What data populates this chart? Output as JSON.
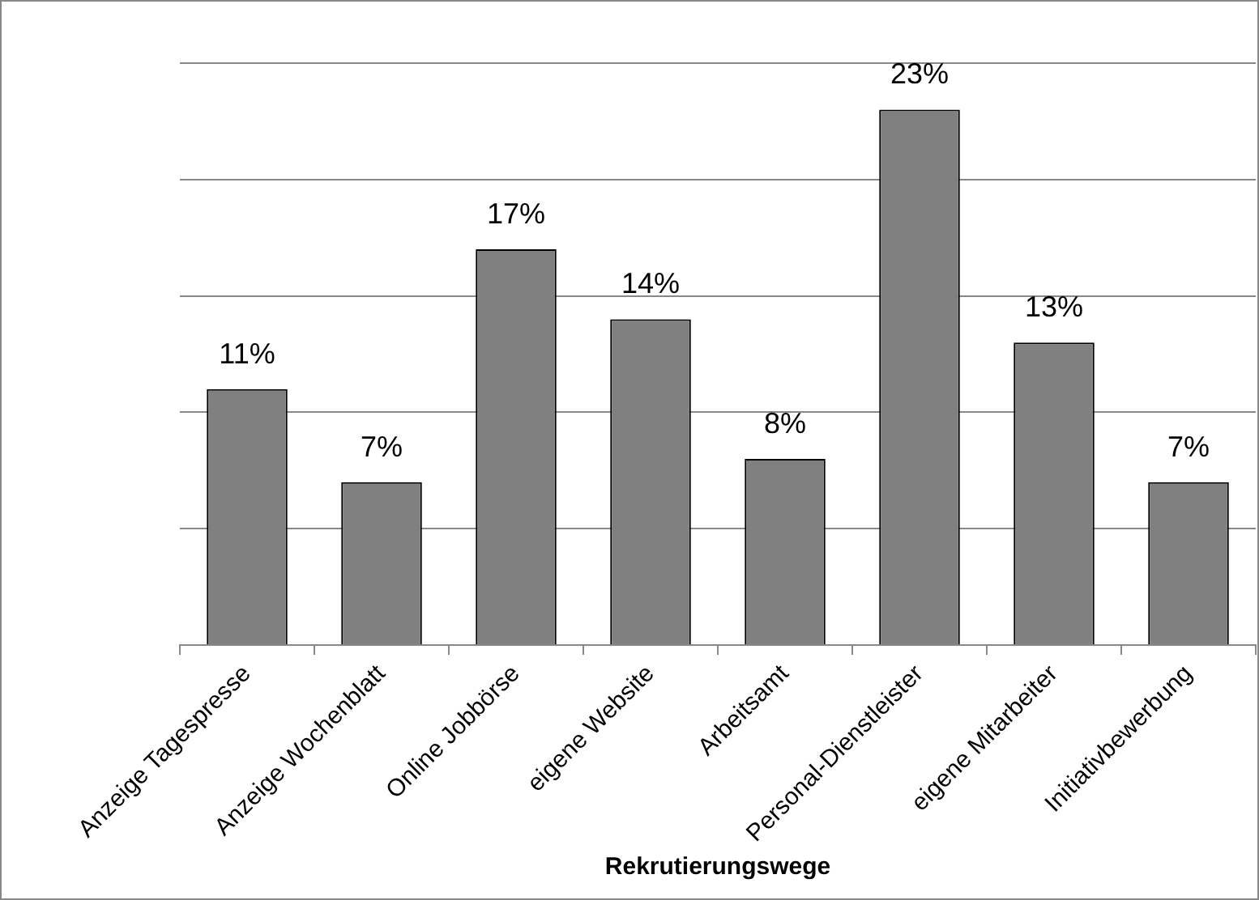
{
  "chart_data": {
    "type": "bar",
    "xlabel": "Rekrutierungswege",
    "categories": [
      "Anzeige Tagespresse",
      "Anzeige Wochenblatt",
      "Online Jobbörse",
      "eigene Website",
      "Arbeitsamt",
      "Personal-Dienstleister",
      "eigene Mitarbeiter",
      "Initiativbewerbung"
    ],
    "values": [
      11,
      7,
      17,
      14,
      8,
      23,
      13,
      7
    ],
    "value_labels": [
      "11%",
      "7%",
      "17%",
      "14%",
      "8%",
      "23%",
      "13%",
      "7%"
    ],
    "color": "#808080",
    "ylim": [
      0,
      25
    ],
    "yticks": [
      {
        "value": 0,
        "label": null
      },
      {
        "value": 5,
        "label": null
      },
      {
        "value": 10,
        "label": null
      },
      {
        "value": 15,
        "label": null
      },
      {
        "value": 20,
        "label": null
      },
      {
        "value": 25,
        "label": null
      }
    ],
    "grid": "y",
    "tick_labels": "x",
    "legend": false
  }
}
